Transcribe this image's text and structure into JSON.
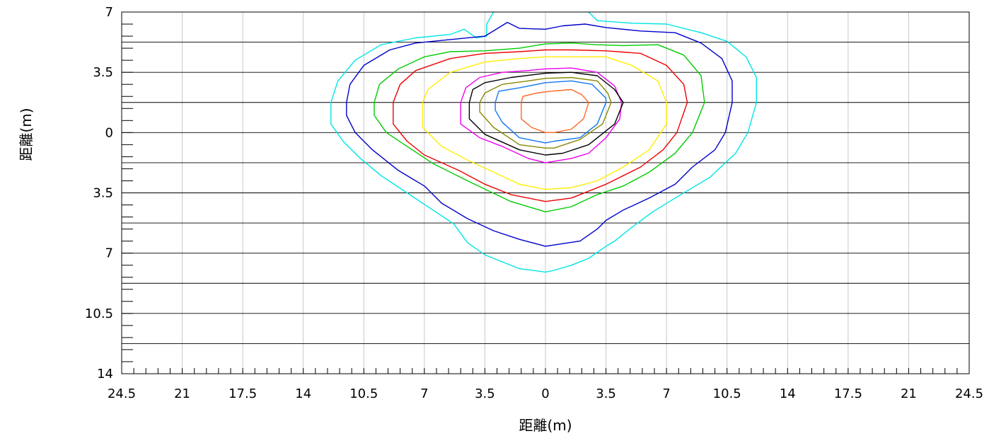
{
  "chart_data": {
    "type": "contour",
    "xlabel": "距離(m)",
    "ylabel": "距離(m)",
    "xlim": [
      -24.5,
      24.5
    ],
    "ylim": [
      -14,
      7
    ],
    "x_ticks": [
      {
        "value": -24.5,
        "label": "24.5"
      },
      {
        "value": -21,
        "label": "21"
      },
      {
        "value": -17.5,
        "label": "17.5"
      },
      {
        "value": -14,
        "label": "14"
      },
      {
        "value": -10.5,
        "label": "10.5"
      },
      {
        "value": -7,
        "label": "7"
      },
      {
        "value": -3.5,
        "label": "3.5"
      },
      {
        "value": 0,
        "label": "0"
      },
      {
        "value": 3.5,
        "label": "3.5"
      },
      {
        "value": 7,
        "label": "7"
      },
      {
        "value": 10.5,
        "label": "10.5"
      },
      {
        "value": 14,
        "label": "14"
      },
      {
        "value": 17.5,
        "label": "17.5"
      },
      {
        "value": 21,
        "label": "21"
      },
      {
        "value": 24.5,
        "label": "24.5"
      }
    ],
    "y_ticks": [
      {
        "value": 7,
        "label": "7"
      },
      {
        "value": 3.5,
        "label": "3.5"
      },
      {
        "value": 0,
        "label": "0"
      },
      {
        "value": -3.5,
        "label": "3.5"
      },
      {
        "value": -7,
        "label": "7"
      },
      {
        "value": -10.5,
        "label": "10.5"
      },
      {
        "value": -14,
        "label": "14"
      }
    ],
    "x_minor_step": 0.7,
    "y_minor_step": 0.7,
    "x_grid_step": 3.5,
    "y_grid_step": 1.75,
    "grid": true,
    "contours": [
      {
        "color": "#00e5e5",
        "points": [
          [
            -12.4,
            1.75
          ],
          [
            -12.0,
            3.0
          ],
          [
            -11.0,
            4.2
          ],
          [
            -9.5,
            5.1
          ],
          [
            -7.5,
            5.5
          ],
          [
            -5.5,
            5.7
          ],
          [
            -4.7,
            6.0
          ],
          [
            -4.0,
            5.5
          ],
          [
            -3.4,
            5.6
          ],
          [
            -3.4,
            6.3
          ],
          [
            -3.0,
            7.0
          ]
        ]
      },
      {
        "color": "#00e5e5",
        "points": [
          [
            2.5,
            7.0
          ],
          [
            3.0,
            6.5
          ],
          [
            5.0,
            6.35
          ],
          [
            7.0,
            6.3
          ],
          [
            9.0,
            5.8
          ],
          [
            10.5,
            5.3
          ],
          [
            11.6,
            4.4
          ],
          [
            12.2,
            3.2
          ],
          [
            12.2,
            1.75
          ],
          [
            11.7,
            0.0
          ],
          [
            11.0,
            -1.2
          ],
          [
            9.5,
            -2.6
          ],
          [
            7.5,
            -3.8
          ],
          [
            6.2,
            -4.6
          ],
          [
            5.0,
            -5.5
          ],
          [
            4.0,
            -6.3
          ],
          [
            3.5,
            -6.6
          ],
          [
            2.5,
            -7.3
          ],
          [
            1.5,
            -7.7
          ],
          [
            0.5,
            -8.0
          ],
          [
            0.0,
            -8.1
          ],
          [
            -1.5,
            -7.9
          ],
          [
            -3.5,
            -7.1
          ],
          [
            -4.5,
            -6.4
          ],
          [
            -5.3,
            -5.3
          ],
          [
            -6.5,
            -4.5
          ],
          [
            -8.0,
            -3.5
          ],
          [
            -9.5,
            -2.5
          ],
          [
            -10.7,
            -1.5
          ],
          [
            -11.7,
            -0.5
          ],
          [
            -12.4,
            0.5
          ],
          [
            -12.4,
            1.75
          ]
        ]
      },
      {
        "color": "#0000cc",
        "points": [
          [
            -11.5,
            1.75
          ],
          [
            -11.3,
            2.8
          ],
          [
            -10.5,
            3.9
          ],
          [
            -9.0,
            4.8
          ],
          [
            -7.5,
            5.2
          ],
          [
            -5.5,
            5.4
          ],
          [
            -3.5,
            5.6
          ],
          [
            -2.2,
            6.4
          ],
          [
            -1.5,
            6.05
          ],
          [
            0.0,
            6.0
          ],
          [
            1.0,
            6.2
          ],
          [
            2.3,
            6.3
          ],
          [
            3.5,
            6.1
          ],
          [
            5.5,
            5.9
          ],
          [
            7.5,
            5.8
          ],
          [
            9.0,
            5.2
          ],
          [
            10.2,
            4.3
          ],
          [
            10.8,
            3.0
          ],
          [
            10.8,
            1.75
          ],
          [
            10.4,
            0.0
          ],
          [
            9.8,
            -1.0
          ],
          [
            8.5,
            -2.0
          ],
          [
            7.5,
            -3.0
          ],
          [
            6.0,
            -3.8
          ],
          [
            4.5,
            -4.5
          ],
          [
            3.5,
            -5.1
          ],
          [
            3.0,
            -5.6
          ],
          [
            2.0,
            -6.3
          ],
          [
            0.0,
            -6.6
          ],
          [
            -1.5,
            -6.2
          ],
          [
            -3.0,
            -5.7
          ],
          [
            -4.5,
            -5.0
          ],
          [
            -6.0,
            -4.1
          ],
          [
            -7.0,
            -3.1
          ],
          [
            -8.5,
            -2.2
          ],
          [
            -10.0,
            -1.0
          ],
          [
            -11.0,
            0.0
          ],
          [
            -11.5,
            1.0
          ],
          [
            -11.5,
            1.75
          ]
        ]
      },
      {
        "color": "#00cc00",
        "points": [
          [
            -9.9,
            1.75
          ],
          [
            -9.6,
            2.8
          ],
          [
            -8.5,
            3.7
          ],
          [
            -7.0,
            4.4
          ],
          [
            -5.5,
            4.7
          ],
          [
            -3.5,
            4.75
          ],
          [
            -1.5,
            4.9
          ],
          [
            0.0,
            5.15
          ],
          [
            1.5,
            5.2
          ],
          [
            3.0,
            5.1
          ],
          [
            4.5,
            5.05
          ],
          [
            6.5,
            5.1
          ],
          [
            8.0,
            4.5
          ],
          [
            9.0,
            3.3
          ],
          [
            9.2,
            1.75
          ],
          [
            8.5,
            0.0
          ],
          [
            7.5,
            -1.2
          ],
          [
            6.0,
            -2.3
          ],
          [
            4.5,
            -3.1
          ],
          [
            3.0,
            -3.6
          ],
          [
            1.5,
            -4.3
          ],
          [
            0.0,
            -4.6
          ],
          [
            -2.0,
            -4.0
          ],
          [
            -4.5,
            -2.8
          ],
          [
            -6.5,
            -1.8
          ],
          [
            -8.0,
            -0.8
          ],
          [
            -9.2,
            0.0
          ],
          [
            -9.9,
            1.0
          ],
          [
            -9.9,
            1.75
          ]
        ]
      },
      {
        "color": "#ee0000",
        "points": [
          [
            -8.8,
            1.75
          ],
          [
            -8.4,
            2.8
          ],
          [
            -7.5,
            3.6
          ],
          [
            -5.5,
            4.3
          ],
          [
            -3.5,
            4.6
          ],
          [
            -1.5,
            4.7
          ],
          [
            0.0,
            4.8
          ],
          [
            1.5,
            4.8
          ],
          [
            3.5,
            4.75
          ],
          [
            5.5,
            4.6
          ],
          [
            7.0,
            3.9
          ],
          [
            8.0,
            2.8
          ],
          [
            8.2,
            1.75
          ],
          [
            7.6,
            0.0
          ],
          [
            6.8,
            -1.0
          ],
          [
            5.5,
            -2.0
          ],
          [
            3.5,
            -3.0
          ],
          [
            1.5,
            -3.8
          ],
          [
            0.0,
            -4.0
          ],
          [
            -2.0,
            -3.6
          ],
          [
            -3.5,
            -3.0
          ],
          [
            -5.0,
            -2.2
          ],
          [
            -7.0,
            -1.3
          ],
          [
            -8.0,
            -0.5
          ],
          [
            -8.8,
            0.5
          ],
          [
            -8.8,
            1.75
          ]
        ]
      },
      {
        "color": "#ffee00",
        "points": [
          [
            -7.1,
            1.75
          ],
          [
            -6.8,
            2.5
          ],
          [
            -5.5,
            3.5
          ],
          [
            -3.5,
            4.1
          ],
          [
            -1.5,
            4.3
          ],
          [
            0.0,
            4.4
          ],
          [
            1.5,
            4.4
          ],
          [
            3.5,
            4.4
          ],
          [
            5.0,
            3.9
          ],
          [
            6.5,
            3.0
          ],
          [
            7.0,
            1.75
          ],
          [
            7.0,
            0.5
          ],
          [
            6.0,
            -1.0
          ],
          [
            4.5,
            -2.0
          ],
          [
            3.0,
            -2.8
          ],
          [
            1.5,
            -3.2
          ],
          [
            0.0,
            -3.3
          ],
          [
            -1.5,
            -3.0
          ],
          [
            -3.0,
            -2.3
          ],
          [
            -4.5,
            -1.6
          ],
          [
            -6.0,
            -0.8
          ],
          [
            -7.1,
            0.3
          ],
          [
            -7.1,
            1.75
          ]
        ]
      },
      {
        "color": "#ee00ee",
        "points": [
          [
            -4.9,
            1.75
          ],
          [
            -4.6,
            2.6
          ],
          [
            -3.8,
            3.2
          ],
          [
            -2.5,
            3.5
          ],
          [
            -1.0,
            3.6
          ],
          [
            0.0,
            3.7
          ],
          [
            1.5,
            3.75
          ],
          [
            3.0,
            3.5
          ],
          [
            4.0,
            2.7
          ],
          [
            4.4,
            1.75
          ],
          [
            4.3,
            0.8
          ],
          [
            3.5,
            -0.3
          ],
          [
            2.5,
            -1.2
          ],
          [
            1.5,
            -1.5
          ],
          [
            0.0,
            -1.75
          ],
          [
            -1.0,
            -1.5
          ],
          [
            -2.5,
            -0.8
          ],
          [
            -3.8,
            -0.3
          ],
          [
            -4.9,
            0.5
          ],
          [
            -4.9,
            1.75
          ]
        ]
      },
      {
        "color": "#000000",
        "points": [
          [
            -4.4,
            1.75
          ],
          [
            -4.2,
            2.5
          ],
          [
            -3.5,
            2.9
          ],
          [
            -2.0,
            3.2
          ],
          [
            0.0,
            3.45
          ],
          [
            1.5,
            3.5
          ],
          [
            3.0,
            3.3
          ],
          [
            4.0,
            2.5
          ],
          [
            4.5,
            1.75
          ],
          [
            4.0,
            0.5
          ],
          [
            2.5,
            -0.7
          ],
          [
            1.0,
            -1.2
          ],
          [
            0.0,
            -1.3
          ],
          [
            -1.5,
            -1.0
          ],
          [
            -3.5,
            -0.1
          ],
          [
            -4.4,
            0.8
          ],
          [
            -4.4,
            1.75
          ]
        ]
      },
      {
        "color": "#888800",
        "points": [
          [
            -3.8,
            1.75
          ],
          [
            -3.5,
            2.3
          ],
          [
            -2.5,
            2.8
          ],
          [
            -1.0,
            3.0
          ],
          [
            0.0,
            3.15
          ],
          [
            1.5,
            3.2
          ],
          [
            3.0,
            3.0
          ],
          [
            3.6,
            2.3
          ],
          [
            3.8,
            1.75
          ],
          [
            3.3,
            0.5
          ],
          [
            2.0,
            -0.4
          ],
          [
            0.5,
            -0.9
          ],
          [
            0.0,
            -0.9
          ],
          [
            -1.5,
            -0.7
          ],
          [
            -3.0,
            0.3
          ],
          [
            -3.8,
            1.2
          ],
          [
            -3.8,
            1.75
          ]
        ]
      },
      {
        "color": "#1177ee",
        "points": [
          [
            -2.9,
            1.75
          ],
          [
            -2.7,
            2.4
          ],
          [
            -1.5,
            2.6
          ],
          [
            0.0,
            2.9
          ],
          [
            1.5,
            3.0
          ],
          [
            2.7,
            2.8
          ],
          [
            3.5,
            2.0
          ],
          [
            3.5,
            1.75
          ],
          [
            3.0,
            0.5
          ],
          [
            2.0,
            -0.3
          ],
          [
            0.5,
            -0.5
          ],
          [
            0.0,
            -0.6
          ],
          [
            -1.5,
            -0.3
          ],
          [
            -2.5,
            0.6
          ],
          [
            -2.9,
            1.3
          ],
          [
            -2.9,
            1.75
          ]
        ]
      },
      {
        "color": "#ff6622",
        "points": [
          [
            -1.4,
            1.75
          ],
          [
            -1.3,
            2.1
          ],
          [
            -0.5,
            2.3
          ],
          [
            0.3,
            2.4
          ],
          [
            1.5,
            2.5
          ],
          [
            2.1,
            2.2
          ],
          [
            2.5,
            1.75
          ],
          [
            2.2,
            0.8
          ],
          [
            1.5,
            0.2
          ],
          [
            0.5,
            0.0
          ],
          [
            0.0,
            0.0
          ],
          [
            -0.8,
            0.3
          ],
          [
            -1.4,
            0.8
          ],
          [
            -1.4,
            1.75
          ]
        ]
      }
    ]
  }
}
